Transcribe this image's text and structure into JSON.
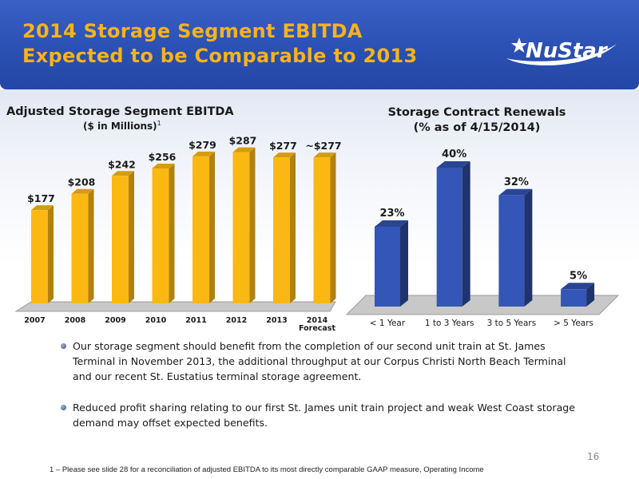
{
  "header": {
    "title_line1": "2014 Storage Segment EBITDA",
    "title_line2": "Expected to be Comparable to 2013",
    "logo_text": "NuStar"
  },
  "colors": {
    "banner": "#2d52b6",
    "title": "#f6b31a",
    "bar_gold": "#fbb813",
    "bar_blue": "#3356b8"
  },
  "chart_data": [
    {
      "type": "bar",
      "title": "Adjusted Storage Segment EBITDA",
      "subtitle": "($ in Millions)",
      "subtitle_sup": "1",
      "categories": [
        "2007",
        "2008",
        "2009",
        "2010",
        "2011",
        "2012",
        "2013",
        "2014"
      ],
      "category_notes": [
        "",
        "",
        "",
        "",
        "",
        "",
        "",
        "Forecast"
      ],
      "values": [
        177,
        208,
        242,
        256,
        279,
        287,
        277,
        277
      ],
      "data_labels": [
        "$177",
        "$208",
        "$242",
        "$256",
        "$279",
        "$287",
        "$277",
        "~$277"
      ],
      "ylim": [
        0,
        300
      ],
      "grid": false
    },
    {
      "type": "bar",
      "title": "Storage Contract Renewals",
      "subtitle": "(% as of 4/15/2014)",
      "categories": [
        "< 1 Year",
        "1 to 3 Years",
        "3 to 5 Years",
        "> 5 Years"
      ],
      "values": [
        23,
        40,
        32,
        5
      ],
      "data_labels": [
        "23%",
        "40%",
        "32%",
        "5%"
      ],
      "ylim": [
        0,
        40
      ],
      "grid": false
    }
  ],
  "bullets": [
    "Our storage segment should benefit from the completion of our second unit train at St. James Terminal in November 2013, the additional throughput at our Corpus Christi North Beach Terminal and our recent St. Eustatius terminal storage agreement.",
    "Reduced profit sharing relating to our first St. James unit train project and weak West Coast storage demand may offset expected benefits."
  ],
  "page_number": "16",
  "footnote": "1 – Please see slide 28 for a reconciliation of adjusted EBITDA to its most directly comparable GAAP measure, Operating Income"
}
